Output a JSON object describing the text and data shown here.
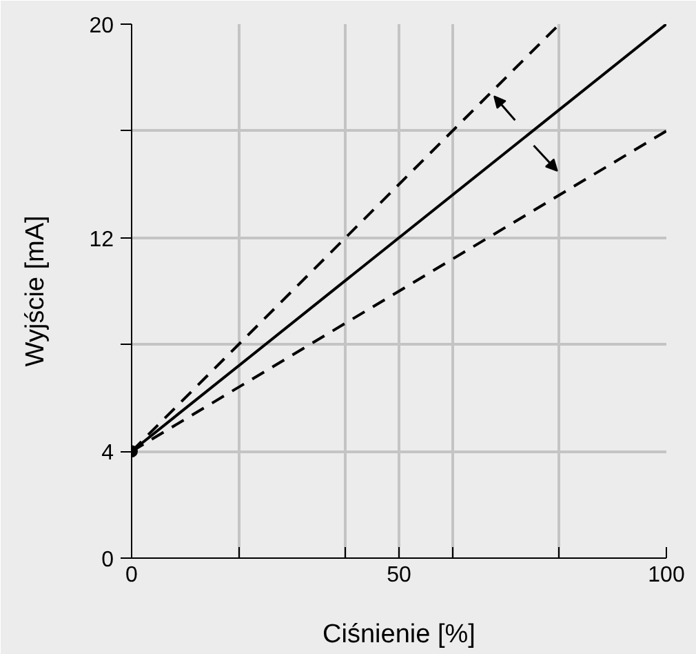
{
  "chart_data": {
    "type": "line",
    "xlabel": "Ciśnienie [%]",
    "ylabel": "Wyjście [mA]",
    "xlim": [
      0,
      100
    ],
    "ylim": [
      0,
      20
    ],
    "xticks": [
      0,
      {
        "value": 20,
        "label": null
      },
      {
        "value": 40,
        "label": null
      },
      50,
      {
        "value": 60,
        "label": null
      },
      {
        "value": 80,
        "label": null
      },
      100
    ],
    "yticks": [
      0,
      4,
      {
        "value": 8,
        "label": null
      },
      12,
      {
        "value": 16,
        "label": null
      },
      20
    ],
    "grid": true,
    "marker": "none",
    "series": [
      {
        "color": "#000000",
        "x": [
          0,
          100
        ],
        "values": [
          4,
          20
        ],
        "line_style": "solid"
      },
      {
        "color": "#000000",
        "x": [
          0,
          80
        ],
        "values": [
          4,
          20
        ],
        "line_style": "dashed"
      },
      {
        "color": "#000000",
        "x": [
          0,
          100
        ],
        "values": [
          4,
          16
        ],
        "line_style": "dashed"
      },
      {
        "type": "scatter",
        "color": "#000000",
        "x": [
          0
        ],
        "values": [
          4
        ],
        "marker": "circle"
      }
    ]
  }
}
